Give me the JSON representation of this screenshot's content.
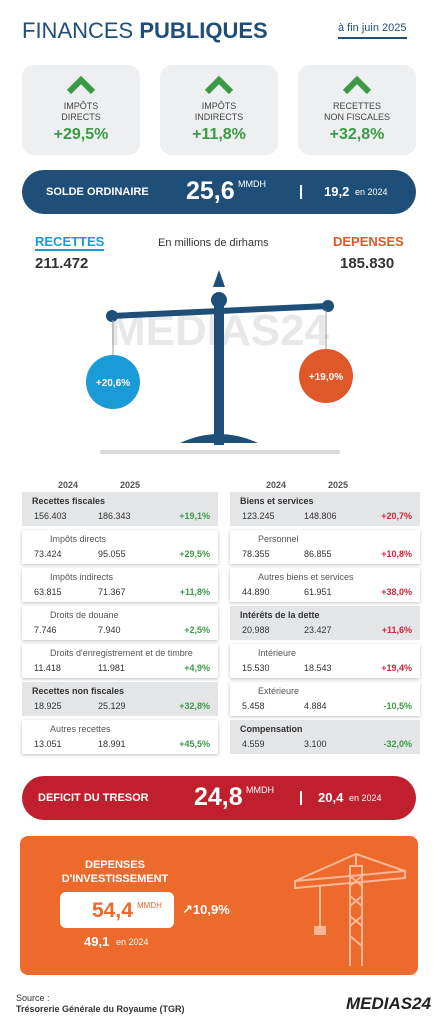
{
  "header": {
    "title_light": "FINANCES",
    "title_bold": "PUBLIQUES",
    "date": "à fin juin 2025"
  },
  "cards": [
    {
      "label": [
        "IMPÔTS",
        "DIRECTS"
      ],
      "value": "+29,5%"
    },
    {
      "label": [
        "IMPÔTS",
        "INDIRECTS"
      ],
      "value": "+11,8%"
    },
    {
      "label": [
        "RECETTES",
        "NON FISCALES"
      ],
      "value": "+32,8%"
    }
  ],
  "solde": {
    "label": "SOLDE ORDINAIRE",
    "value": "25,6",
    "unit": "MMDH",
    "prev_value": "19,2",
    "prev_label": "en 2024"
  },
  "balance": {
    "recettes_label": "RECETTES",
    "recettes_value": "211.472",
    "unit_note": "En millions de dirhams",
    "depenses_label": "DEPENSES",
    "depenses_value": "185.830",
    "recettes_growth": "+20,6%",
    "depenses_growth": "+19,0%",
    "watermark": "MEDIAS24"
  },
  "table": {
    "left": {
      "years": [
        "2024",
        "2025"
      ],
      "rows": [
        {
          "label": "Recettes fiscales",
          "v2024": "156.403",
          "v2025": "186.343",
          "change": "+19,1%",
          "bold": true
        },
        {
          "label": "Impôts directs",
          "v2024": "73.424",
          "v2025": "95.055",
          "change": "+29,5%",
          "bold": false
        },
        {
          "label": "Impôts indirects",
          "v2024": "63.815",
          "v2025": "71.367",
          "change": "+11,8%",
          "bold": false
        },
        {
          "label": "Droits de douane",
          "v2024": "7.746",
          "v2025": "7.940",
          "change": "+2,5%",
          "bold": false
        },
        {
          "label": "Droits d'enregistrement et de timbre",
          "v2024": "11.418",
          "v2025": "11.981",
          "change": "+4,9%",
          "bold": false
        },
        {
          "label": "Recettes non fiscales",
          "v2024": "18.925",
          "v2025": "25.129",
          "change": "+32,8%",
          "bold": true
        },
        {
          "label": "Autres recettes",
          "v2024": "13.051",
          "v2025": "18.991",
          "change": "+45,5%",
          "bold": false
        }
      ]
    },
    "right": {
      "years": [
        "2024",
        "2025"
      ],
      "rows": [
        {
          "label": "Biens et services",
          "v2024": "123.245",
          "v2025": "148.806",
          "change": "+20,7%",
          "bold": true
        },
        {
          "label": "Personnel",
          "v2024": "78.355",
          "v2025": "86.855",
          "change": "+10,8%",
          "bold": false
        },
        {
          "label": "Autres biens et services",
          "v2024": "44.890",
          "v2025": "61.951",
          "change": "+38,0%",
          "bold": false
        },
        {
          "label": "Intérêts de la dette",
          "v2024": "20.988",
          "v2025": "23.427",
          "change": "+11,6%",
          "bold": true
        },
        {
          "label": "Intérieure",
          "v2024": "15.530",
          "v2025": "18.543",
          "change": "+19,4%",
          "bold": false
        },
        {
          "label": "Extérieure",
          "v2024": "5.458",
          "v2025": "4.884",
          "change": "-10,5%",
          "bold": false
        },
        {
          "label": "Compensation",
          "v2024": "4.559",
          "v2025": "3.100",
          "change": "-32,0%",
          "bold": true
        }
      ]
    }
  },
  "deficit": {
    "label": "DEFICIT DU TRESOR",
    "value": "24,8",
    "unit": "MMDH",
    "prev_value": "20,4",
    "prev_label": "en 2024"
  },
  "investissement": {
    "title": [
      "DEPENSES",
      "D'INVESTISSEMENT"
    ],
    "value": "54,4",
    "unit": "MMDH",
    "growth": "10,9%",
    "prev_value": "49,1",
    "prev_label": "en 2024"
  },
  "footer": {
    "source_label": "Source :",
    "source": "Trésorerie Générale du Royaume (TGR)",
    "brand": "MEDIAS24"
  }
}
